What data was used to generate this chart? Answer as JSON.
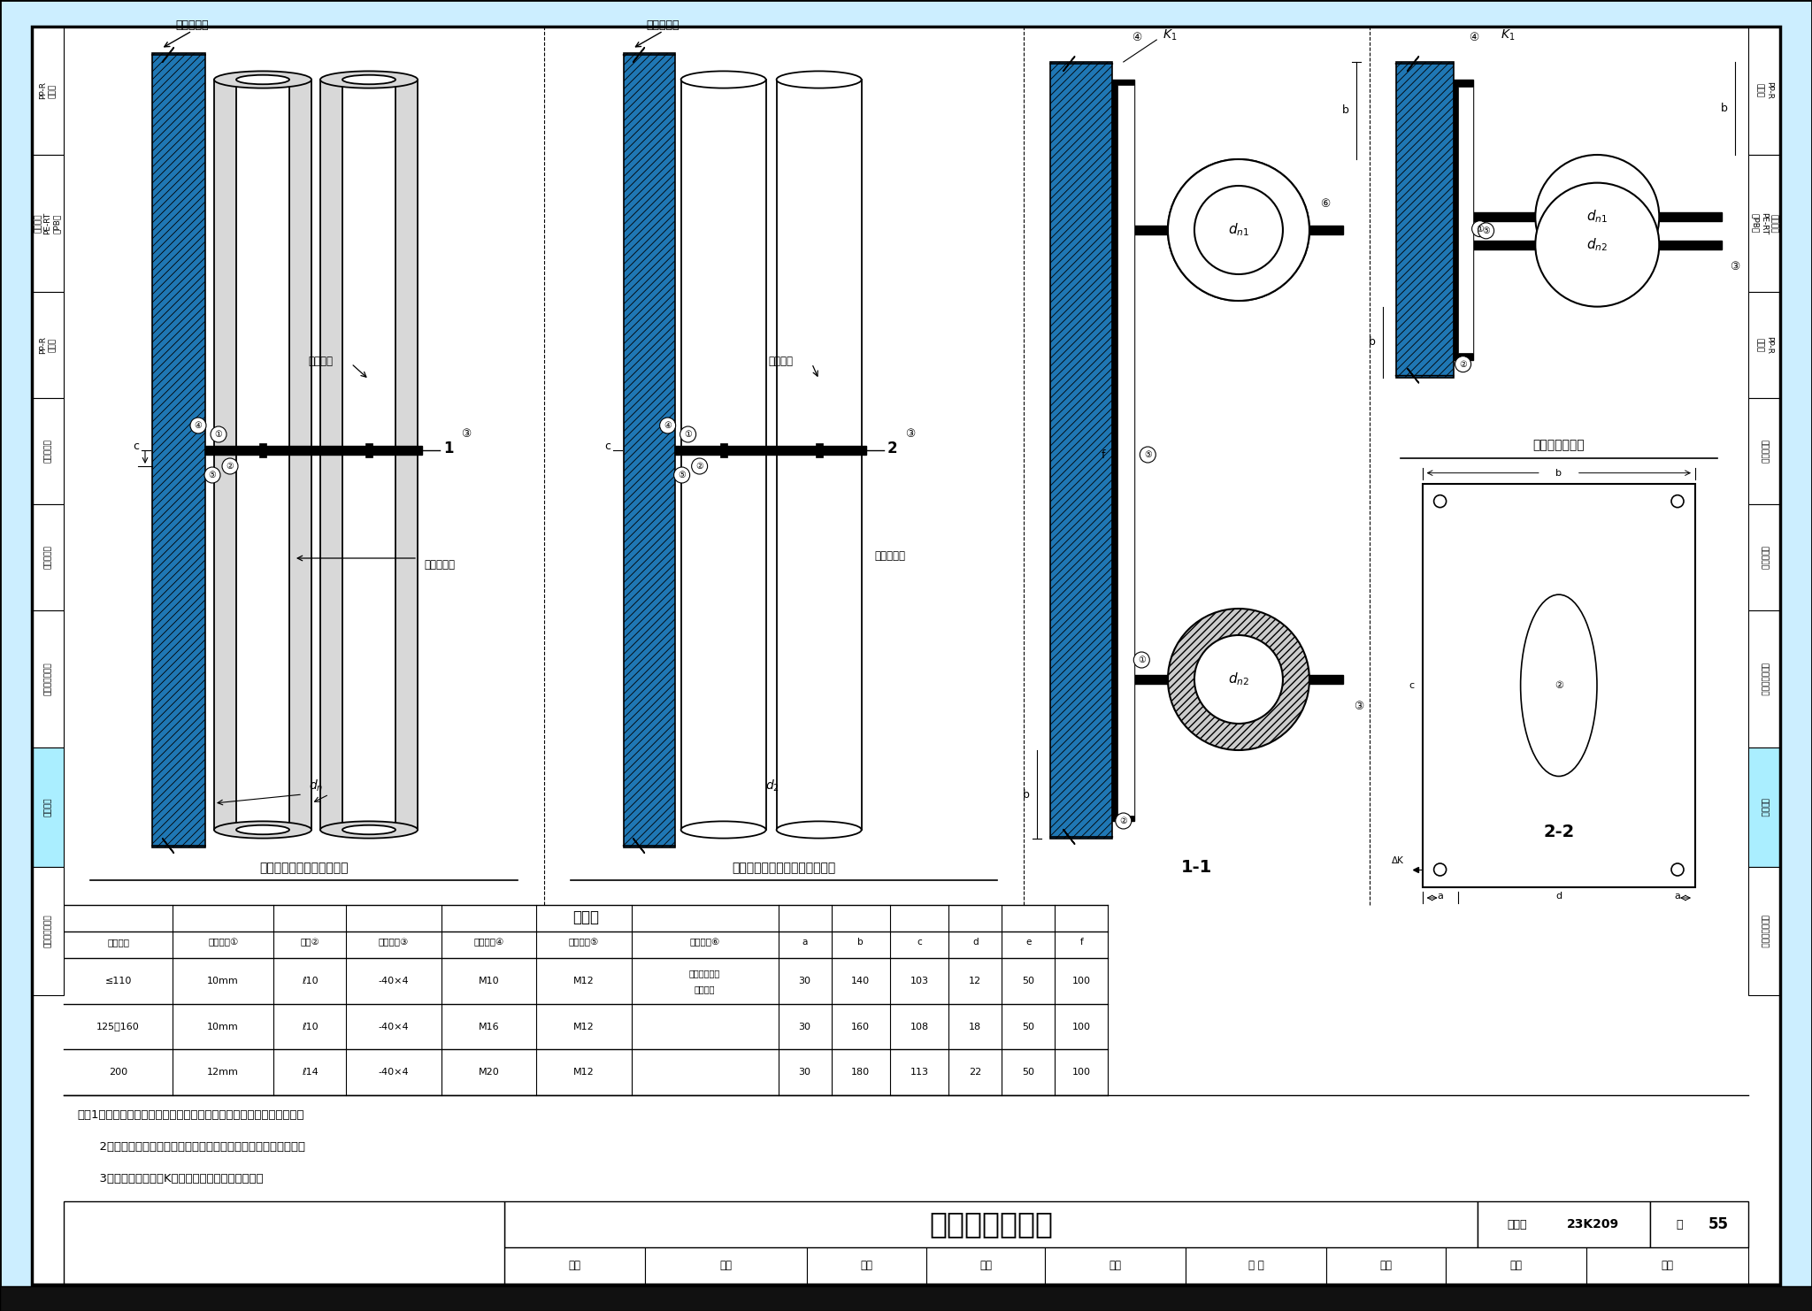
{
  "title": "双立管滑动支架",
  "atlas_no": "23K209",
  "page": "55",
  "subtitle1": "绝热双立管滑动支架立面图",
  "subtitle2": "无绝热层双立管滑动支架立面图",
  "label_11": "1-1",
  "label_22": "2-2",
  "label_detail": "固定钢板大样图",
  "material_table_title": "材料表",
  "table_headers": [
    "公称外径",
    "钢板厚度①",
    "槽钢②",
    "镀锌扁钢③",
    "膨胀锚栓④",
    "镀锌螺栓⑤",
    "绝热木托⑥",
    "a",
    "b",
    "c",
    "d",
    "e",
    "f"
  ],
  "table_rows": [
    [
      "≤110",
      "10mm",
      "ℓ10",
      "-40×4",
      "M10",
      "M12",
      "与管道绝热层\n厚度相同",
      "30",
      "140",
      "103",
      "12",
      "50",
      "100"
    ],
    [
      "125～160",
      "10mm",
      "ℓ10",
      "-40×4",
      "M16",
      "M12",
      "",
      "30",
      "160",
      "108",
      "18",
      "50",
      "100"
    ],
    [
      "200",
      "12mm",
      "ℓ14",
      "-40×4",
      "M20",
      "M12",
      "",
      "30",
      "180",
      "113",
      "22",
      "50",
      "100"
    ]
  ],
  "notes": [
    "注：1．本图适用于复合塑料管的双立管在混凝土墙上的滑动支架安装。",
    "      2．复合塑料管道无绝热时，金属管卡与管道之间设耐热橡胶垫。",
    "      3．本图中焊缝高度K值不应小于焊接的钢板厚度。"
  ],
  "sig_labels": [
    "审核",
    "薄隆",
    "制图",
    "校对",
    "刘波",
    "子 屿",
    "设计",
    "郐勇",
    "邻勇"
  ],
  "sig_widths": [
    65,
    75,
    55,
    55,
    65,
    65,
    55,
    65,
    75
  ],
  "left_sidebar": [
    "PP-R\n复合管",
    "铝合金衬\nPE-RT\n、PB管",
    "PP-R\n稳态管",
    "铝塑复合管",
    "钢塑复合管",
    "管道热补偿方式",
    "管道支架",
    "管道布置与敷设"
  ],
  "sidebar_heights": [
    145,
    155,
    120,
    120,
    120,
    155,
    135,
    145
  ],
  "sidebar_highlight_idx": 6,
  "highlight_color": "#aaeeff",
  "bg_color": "#ffffff"
}
